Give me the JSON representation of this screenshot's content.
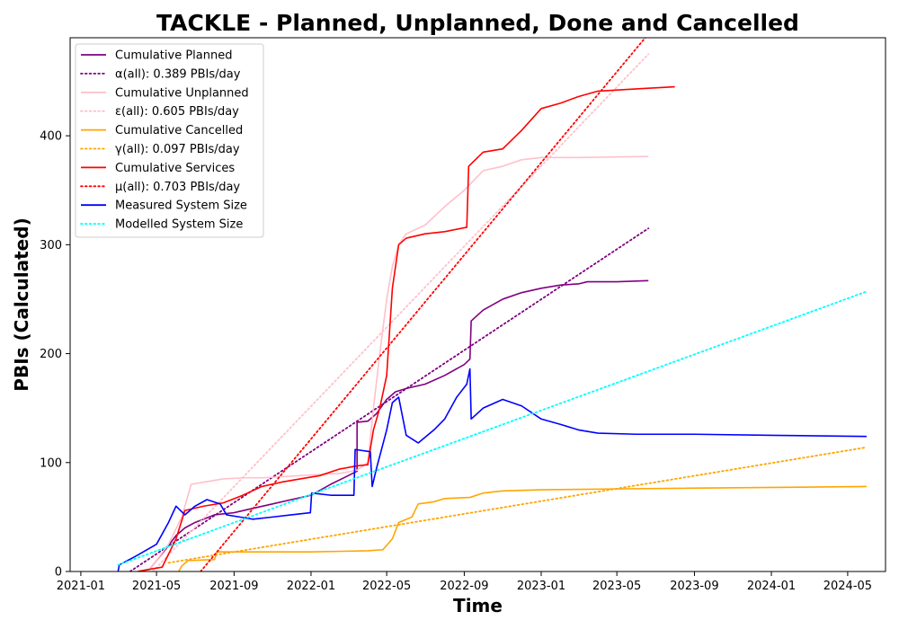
{
  "chart_data": {
    "type": "line",
    "title": "TACKLE - Planned, Unplanned, Done  and Cancelled",
    "xlabel": "Time",
    "ylabel": "PBIs (Calculated)",
    "xlim": [
      "2020-12-15",
      "2024-06-30"
    ],
    "ylim": [
      0,
      490
    ],
    "x_ticks": [
      "2021-01",
      "2021-05",
      "2021-09",
      "2022-01",
      "2022-05",
      "2022-09",
      "2023-01",
      "2023-05",
      "2023-09",
      "2024-01",
      "2024-05"
    ],
    "y_ticks": [
      0,
      100,
      200,
      300,
      400
    ],
    "grid": false,
    "legend_position": "top-left",
    "series": [
      {
        "name": "Cumulative Planned",
        "color": "#800080",
        "style": "solid",
        "points": [
          [
            "2021-04-01",
            0
          ],
          [
            "2021-04-20",
            2
          ],
          [
            "2021-05-01",
            10
          ],
          [
            "2021-05-15",
            20
          ],
          [
            "2021-06-01",
            33
          ],
          [
            "2021-06-15",
            40
          ],
          [
            "2021-07-01",
            45
          ],
          [
            "2021-08-01",
            52
          ],
          [
            "2021-09-01",
            54
          ],
          [
            "2021-10-01",
            58
          ],
          [
            "2021-11-01",
            62
          ],
          [
            "2021-12-01",
            66
          ],
          [
            "2022-01-01",
            70
          ],
          [
            "2022-02-01",
            80
          ],
          [
            "2022-03-01",
            88
          ],
          [
            "2022-03-15",
            92
          ],
          [
            "2022-03-15",
            137
          ],
          [
            "2022-04-01",
            138
          ],
          [
            "2022-04-15",
            145
          ],
          [
            "2022-05-01",
            158
          ],
          [
            "2022-05-15",
            165
          ],
          [
            "2022-06-01",
            168
          ],
          [
            "2022-07-01",
            172
          ],
          [
            "2022-08-01",
            180
          ],
          [
            "2022-09-01",
            190
          ],
          [
            "2022-09-10",
            195
          ],
          [
            "2022-09-12",
            230
          ],
          [
            "2022-10-01",
            240
          ],
          [
            "2022-11-01",
            250
          ],
          [
            "2022-12-01",
            256
          ],
          [
            "2023-01-01",
            260
          ],
          [
            "2023-02-01",
            263
          ],
          [
            "2023-03-01",
            264
          ],
          [
            "2023-03-15",
            266
          ],
          [
            "2023-05-01",
            266
          ],
          [
            "2023-06-20",
            267
          ]
        ]
      },
      {
        "name": "α(all): 0.389 PBIs/day",
        "color": "#800080",
        "style": "dotted",
        "points": [
          [
            "2021-03-20",
            0
          ],
          [
            "2023-06-20",
            315
          ]
        ]
      },
      {
        "name": "Cumulative Unplanned",
        "color": "#ffc0cb",
        "style": "solid",
        "points": [
          [
            "2021-04-01",
            0
          ],
          [
            "2021-04-20",
            2
          ],
          [
            "2021-05-01",
            10
          ],
          [
            "2021-05-20",
            25
          ],
          [
            "2021-06-10",
            50
          ],
          [
            "2021-06-25",
            80
          ],
          [
            "2021-07-15",
            82
          ],
          [
            "2021-08-15",
            85
          ],
          [
            "2021-09-15",
            86
          ],
          [
            "2021-10-15",
            86
          ],
          [
            "2021-11-15",
            87
          ],
          [
            "2021-12-15",
            88
          ],
          [
            "2022-01-15",
            89
          ],
          [
            "2022-02-15",
            90
          ],
          [
            "2022-03-15",
            93
          ],
          [
            "2022-04-01",
            100
          ],
          [
            "2022-04-10",
            150
          ],
          [
            "2022-04-20",
            200
          ],
          [
            "2022-05-01",
            250
          ],
          [
            "2022-05-10",
            280
          ],
          [
            "2022-05-20",
            300
          ],
          [
            "2022-06-01",
            310
          ],
          [
            "2022-07-01",
            318
          ],
          [
            "2022-08-01",
            335
          ],
          [
            "2022-09-01",
            350
          ],
          [
            "2022-10-01",
            368
          ],
          [
            "2022-11-01",
            372
          ],
          [
            "2022-12-01",
            378
          ],
          [
            "2023-01-01",
            380
          ],
          [
            "2023-03-01",
            380
          ],
          [
            "2023-06-20",
            381
          ]
        ]
      },
      {
        "name": "ε(all): 0.605 PBIs/day",
        "color": "#ffc0cb",
        "style": "dotted",
        "points": [
          [
            "2021-04-25",
            0
          ],
          [
            "2023-06-20",
            475
          ]
        ]
      },
      {
        "name": "Cumulative Cancelled",
        "color": "#ffa500",
        "style": "solid",
        "points": [
          [
            "2021-06-05",
            0
          ],
          [
            "2021-06-10",
            5
          ],
          [
            "2021-06-20",
            10
          ],
          [
            "2021-08-01",
            11
          ],
          [
            "2021-08-05",
            18
          ],
          [
            "2021-10-01",
            18
          ],
          [
            "2022-01-01",
            18
          ],
          [
            "2022-04-01",
            19
          ],
          [
            "2022-04-25",
            20
          ],
          [
            "2022-05-10",
            30
          ],
          [
            "2022-05-20",
            45
          ],
          [
            "2022-06-10",
            50
          ],
          [
            "2022-06-20",
            62
          ],
          [
            "2022-07-15",
            64
          ],
          [
            "2022-08-01",
            67
          ],
          [
            "2022-09-10",
            68
          ],
          [
            "2022-10-01",
            72
          ],
          [
            "2022-11-01",
            74
          ],
          [
            "2023-01-01",
            75
          ],
          [
            "2023-06-01",
            76
          ],
          [
            "2024-05-31",
            78
          ]
        ]
      },
      {
        "name": "γ(all): 0.097 PBIs/day",
        "color": "#ffa500",
        "style": "dotted",
        "points": [
          [
            "2021-05-20",
            8
          ],
          [
            "2024-05-31",
            114
          ]
        ]
      },
      {
        "name": "Cumulative Services",
        "color": "#ff0000",
        "style": "solid",
        "points": [
          [
            "2021-04-01",
            0
          ],
          [
            "2021-04-20",
            2
          ],
          [
            "2021-05-10",
            4
          ],
          [
            "2021-06-01",
            30
          ],
          [
            "2021-06-15",
            56
          ],
          [
            "2021-07-15",
            60
          ],
          [
            "2021-08-15",
            63
          ],
          [
            "2021-09-15",
            70
          ],
          [
            "2021-10-15",
            78
          ],
          [
            "2021-11-15",
            82
          ],
          [
            "2021-12-15",
            85
          ],
          [
            "2022-01-15",
            88
          ],
          [
            "2022-02-15",
            94
          ],
          [
            "2022-03-15",
            97
          ],
          [
            "2022-04-01",
            98
          ],
          [
            "2022-04-10",
            130
          ],
          [
            "2022-04-20",
            150
          ],
          [
            "2022-05-01",
            180
          ],
          [
            "2022-05-10",
            260
          ],
          [
            "2022-05-20",
            300
          ],
          [
            "2022-06-01",
            306
          ],
          [
            "2022-07-01",
            310
          ],
          [
            "2022-08-01",
            312
          ],
          [
            "2022-09-05",
            316
          ],
          [
            "2022-09-08",
            372
          ],
          [
            "2022-10-01",
            385
          ],
          [
            "2022-11-01",
            388
          ],
          [
            "2022-12-01",
            405
          ],
          [
            "2023-01-01",
            425
          ],
          [
            "2023-02-01",
            430
          ],
          [
            "2023-03-01",
            436
          ],
          [
            "2023-04-01",
            441
          ],
          [
            "2023-06-01",
            443
          ],
          [
            "2023-08-01",
            445
          ]
        ]
      },
      {
        "name": "μ(all): 0.703 PBIs/day",
        "color": "#ff0000",
        "style": "dotted",
        "points": [
          [
            "2021-07-10",
            0
          ],
          [
            "2023-06-15",
            490
          ]
        ]
      },
      {
        "name": "Measured System Size",
        "color": "#0000ff",
        "style": "solid",
        "points": [
          [
            "2021-03-01",
            0
          ],
          [
            "2021-03-03",
            6
          ],
          [
            "2021-04-01",
            15
          ],
          [
            "2021-05-01",
            25
          ],
          [
            "2021-05-20",
            45
          ],
          [
            "2021-06-01",
            60
          ],
          [
            "2021-06-15",
            52
          ],
          [
            "2021-07-01",
            60
          ],
          [
            "2021-07-20",
            66
          ],
          [
            "2021-08-10",
            62
          ],
          [
            "2021-08-20",
            52
          ],
          [
            "2021-09-10",
            50
          ],
          [
            "2021-10-01",
            48
          ],
          [
            "2021-11-01",
            50
          ],
          [
            "2021-12-01",
            52
          ],
          [
            "2021-12-31",
            54
          ],
          [
            "2022-01-02",
            72
          ],
          [
            "2022-02-01",
            70
          ],
          [
            "2022-03-10",
            70
          ],
          [
            "2022-03-12",
            112
          ],
          [
            "2022-04-05",
            110
          ],
          [
            "2022-04-08",
            78
          ],
          [
            "2022-04-15",
            95
          ],
          [
            "2022-05-01",
            130
          ],
          [
            "2022-05-10",
            155
          ],
          [
            "2022-05-20",
            160
          ],
          [
            "2022-06-01",
            125
          ],
          [
            "2022-06-20",
            118
          ],
          [
            "2022-07-15",
            130
          ],
          [
            "2022-08-01",
            140
          ],
          [
            "2022-08-20",
            160
          ],
          [
            "2022-09-05",
            172
          ],
          [
            "2022-09-10",
            186
          ],
          [
            "2022-09-12",
            140
          ],
          [
            "2022-10-01",
            150
          ],
          [
            "2022-11-01",
            158
          ],
          [
            "2022-12-01",
            152
          ],
          [
            "2023-01-01",
            140
          ],
          [
            "2023-02-01",
            135
          ],
          [
            "2023-03-01",
            130
          ],
          [
            "2023-04-01",
            127
          ],
          [
            "2023-06-01",
            126
          ],
          [
            "2023-09-01",
            126
          ],
          [
            "2024-01-01",
            125
          ],
          [
            "2024-05-31",
            124
          ]
        ]
      },
      {
        "name": "Modelled System Size",
        "color": "#00ffff",
        "style": "dotted",
        "points": [
          [
            "2021-03-01",
            6
          ],
          [
            "2024-05-31",
            257
          ]
        ]
      }
    ]
  }
}
